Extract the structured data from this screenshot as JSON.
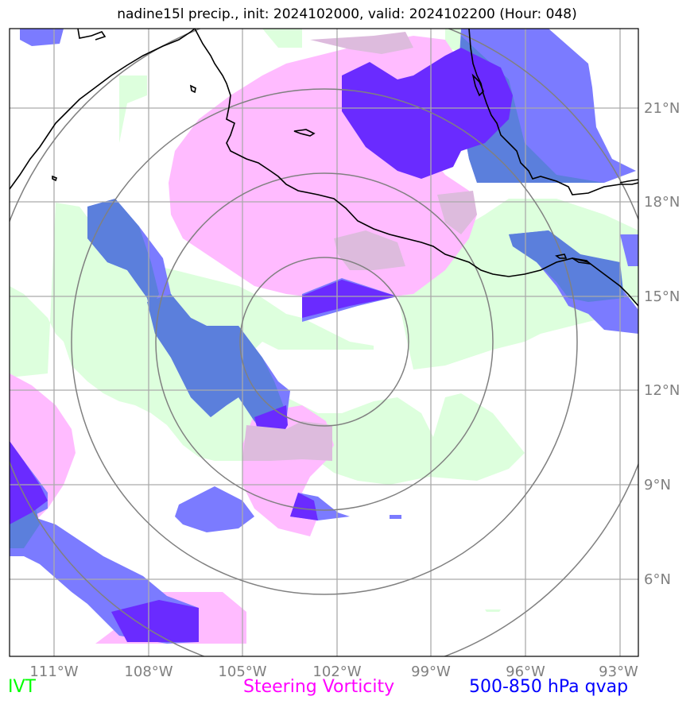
{
  "title": "nadine15l precip., init: 2024102000, valid: 2024102200 (Hour: 048)",
  "lon_ticks": [
    "111°W",
    "108°W",
    "105°W",
    "102°W",
    "99°W",
    "96°W",
    "93°W"
  ],
  "lat_ticks": [
    "21°N",
    "18°N",
    "15°N",
    "12°N",
    "9°N",
    "6°N"
  ],
  "legend": {
    "ivt": "IVT",
    "vorticity": "Steering Vorticity",
    "qvap": "500-850 hPa qvap"
  },
  "colors": {
    "ivt": "#00ff00",
    "vorticity": "#ff00ff",
    "qvap": "#0000ff",
    "ivt_fill": "#ddffdd",
    "vorticity_fill": "#ffbbff",
    "qvap_fill": "#7b7bff",
    "qvap_dark": "#6a2bff",
    "overlap_fill": "#5b7fdc",
    "grid": "#aaaaaa",
    "range_rings": "#808080",
    "coastline": "#000000"
  },
  "map": {
    "lon_range": [
      -112.4,
      -92.4
    ],
    "lat_range": [
      3.4,
      23.4
    ],
    "range_rings_center": "13.7°N 102°W"
  }
}
